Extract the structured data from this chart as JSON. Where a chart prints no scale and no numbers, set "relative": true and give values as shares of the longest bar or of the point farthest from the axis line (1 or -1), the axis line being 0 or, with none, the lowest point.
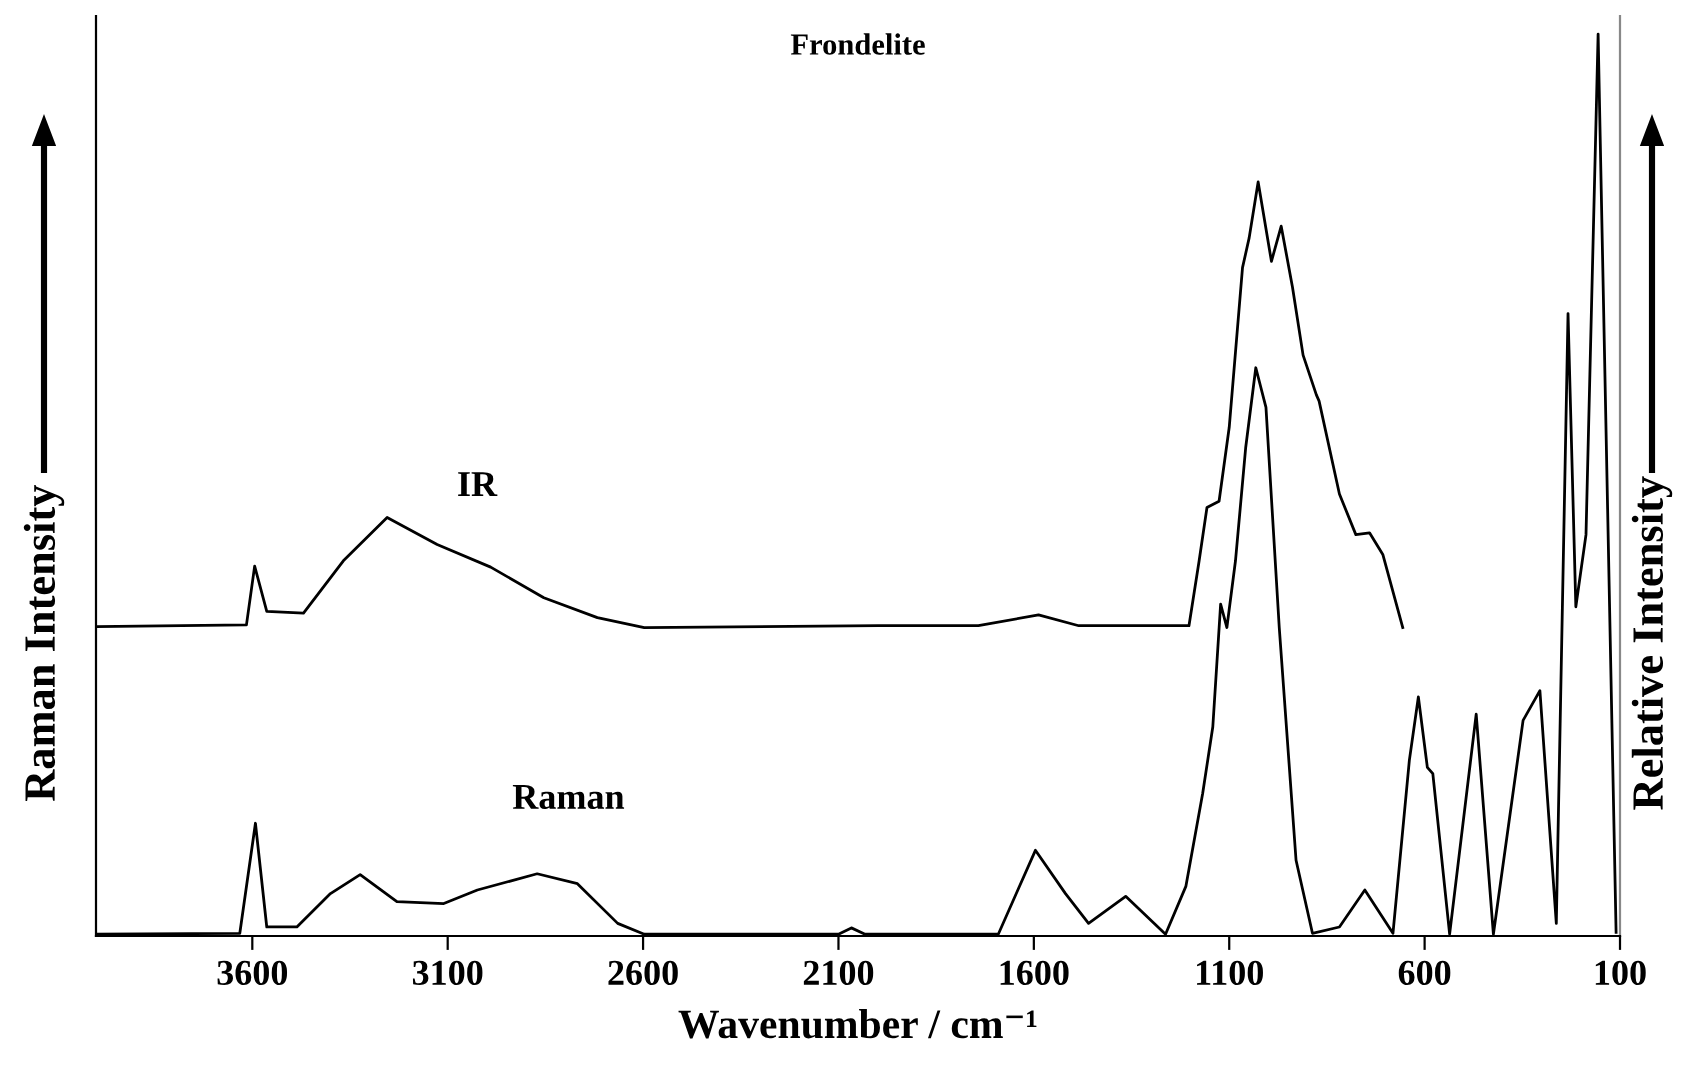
{
  "chart_data": {
    "type": "line",
    "title": "Frondelite",
    "xlabel": "Wavenumber / cm⁻¹",
    "ylabel": "Raman Intensity",
    "y2label": "Relative Intensity",
    "relative": true,
    "xlim": [
      4000,
      100
    ],
    "xticks": [
      3600,
      3100,
      2600,
      2100,
      1600,
      1100,
      600,
      100
    ],
    "grid": false,
    "legend": false,
    "marker": "none",
    "line_style": "solid",
    "series": [
      {
        "name": "IR",
        "color": "#000000",
        "x": [
          4000,
          3615,
          3594,
          3563,
          3469,
          3367,
          3255,
          3127,
          2990,
          2854,
          2717,
          2597,
          1998,
          1742,
          1588,
          1485,
          1203,
          1177,
          1157,
          1126,
          1100,
          1066,
          1049,
          1026,
          992,
          967,
          938,
          911,
          877,
          870,
          818,
          776,
          741,
          707,
          656
        ],
        "values": [
          0.343,
          0.345,
          0.41,
          0.36,
          0.358,
          0.416,
          0.464,
          0.434,
          0.409,
          0.375,
          0.353,
          0.342,
          0.344,
          0.344,
          0.356,
          0.344,
          0.344,
          0.416,
          0.475,
          0.482,
          0.564,
          0.741,
          0.774,
          0.836,
          0.748,
          0.787,
          0.719,
          0.644,
          0.6,
          0.593,
          0.49,
          0.445,
          0.447,
          0.423,
          0.342
        ]
      },
      {
        "name": "Raman",
        "color": "#000000",
        "x": [
          4000,
          3632,
          3592,
          3563,
          3486,
          3400,
          3324,
          3230,
          3110,
          3024,
          2871,
          2768,
          2665,
          2597,
          2100,
          2067,
          2032,
          1896,
          1691,
          1596,
          1519,
          1460,
          1365,
          1263,
          1211,
          1168,
          1142,
          1122,
          1106,
          1084,
          1058,
          1032,
          1006,
          972,
          929,
          887,
          818,
          753,
          681,
          639,
          616,
          593,
          579,
          536,
          468,
          424,
          348,
          305,
          263,
          233,
          213,
          187,
          156,
          110
        ],
        "values": [
          0.002,
          0.003,
          0.125,
          0.01,
          0.01,
          0.047,
          0.068,
          0.038,
          0.036,
          0.051,
          0.069,
          0.058,
          0.014,
          0.002,
          0.002,
          0.009,
          0.002,
          0.002,
          0.002,
          0.095,
          0.047,
          0.014,
          0.044,
          0.002,
          0.055,
          0.158,
          0.232,
          0.368,
          0.342,
          0.416,
          0.541,
          0.63,
          0.586,
          0.342,
          0.084,
          0.003,
          0.01,
          0.051,
          0.003,
          0.195,
          0.265,
          0.187,
          0.18,
          0.002,
          0.246,
          0.002,
          0.239,
          0.272,
          0.014,
          0.69,
          0.365,
          0.445,
          1.0,
          0.004
        ]
      }
    ]
  }
}
